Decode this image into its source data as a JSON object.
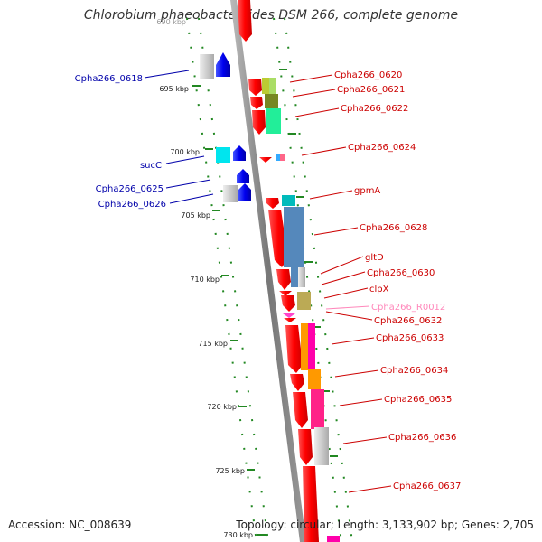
{
  "title": "Chlorobium phaeobacteroides DSM 266, complete genome",
  "footer": {
    "accession": "Accession: NC_008639",
    "summary": "Topology: circular; Length: 3,133,902 bp; Genes: 2,705"
  },
  "axis_ticks": [
    "690 kbp",
    "695 kbp",
    "700 kbp",
    "705 kbp",
    "710 kbp",
    "715 kbp",
    "720 kbp",
    "725 kbp",
    "730 kbp"
  ],
  "colors": {
    "forward_label": "#cc0000",
    "reverse_label": "#0000aa",
    "rna_label": "#ff88bb",
    "backbone": "#888888",
    "tick_mark": "#228822"
  },
  "forward_genes": [
    "Cpha266_0620",
    "Cpha266_0621",
    "Cpha266_0622",
    "Cpha266_0624",
    "gpmA",
    "Cpha266_0628",
    "gltD",
    "Cpha266_0630",
    "clpX",
    "Cpha266_0632",
    "Cpha266_0633",
    "Cpha266_0634",
    "Cpha266_0635",
    "Cpha266_0636",
    "Cpha266_0637"
  ],
  "reverse_genes": [
    "Cpha266_0618",
    "sucC",
    "Cpha266_0625",
    "Cpha266_0626"
  ],
  "rna_genes": [
    "Cpha266_R0012"
  ]
}
